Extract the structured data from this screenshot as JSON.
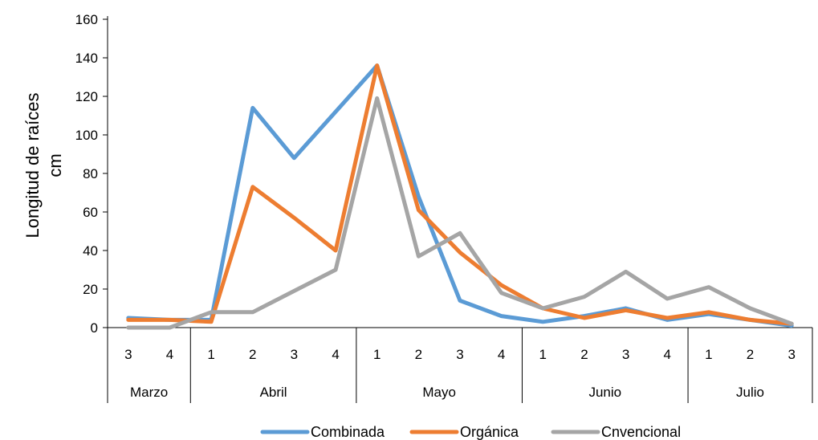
{
  "chart_data": {
    "type": "line",
    "ylabel_lines": [
      "Longitud de raíces",
      "cm"
    ],
    "ylim": [
      0,
      160
    ],
    "yticks": [
      0,
      20,
      40,
      60,
      80,
      100,
      120,
      140,
      160
    ],
    "x_ticks": [
      "3",
      "4",
      "1",
      "2",
      "3",
      "4",
      "1",
      "2",
      "3",
      "4",
      "1",
      "2",
      "3",
      "4",
      "1",
      "2",
      "3"
    ],
    "groups": [
      {
        "label": "Marzo",
        "count": 2
      },
      {
        "label": "Abril",
        "count": 4
      },
      {
        "label": "Mayo",
        "count": 4
      },
      {
        "label": "Junio",
        "count": 4
      },
      {
        "label": "Julio",
        "count": 3
      }
    ],
    "series": [
      {
        "name": "Combinada",
        "color": "#5B9BD5",
        "values": [
          5,
          4,
          4,
          114,
          88,
          112,
          136,
          68,
          14,
          6,
          3,
          6,
          10,
          4,
          7,
          4,
          1
        ]
      },
      {
        "name": "Orgánica",
        "color": "#ED7D31",
        "values": [
          4,
          4,
          3,
          73,
          57,
          40,
          136,
          61,
          39,
          22,
          10,
          5,
          9,
          5,
          8,
          4,
          2
        ]
      },
      {
        "name": "Cnvencional",
        "color": "#A5A5A5",
        "values": [
          0,
          0,
          8,
          8,
          19,
          30,
          119,
          37,
          49,
          18,
          10,
          16,
          29,
          15,
          21,
          10,
          2
        ]
      }
    ],
    "legend_position": "bottom",
    "grid": false
  }
}
